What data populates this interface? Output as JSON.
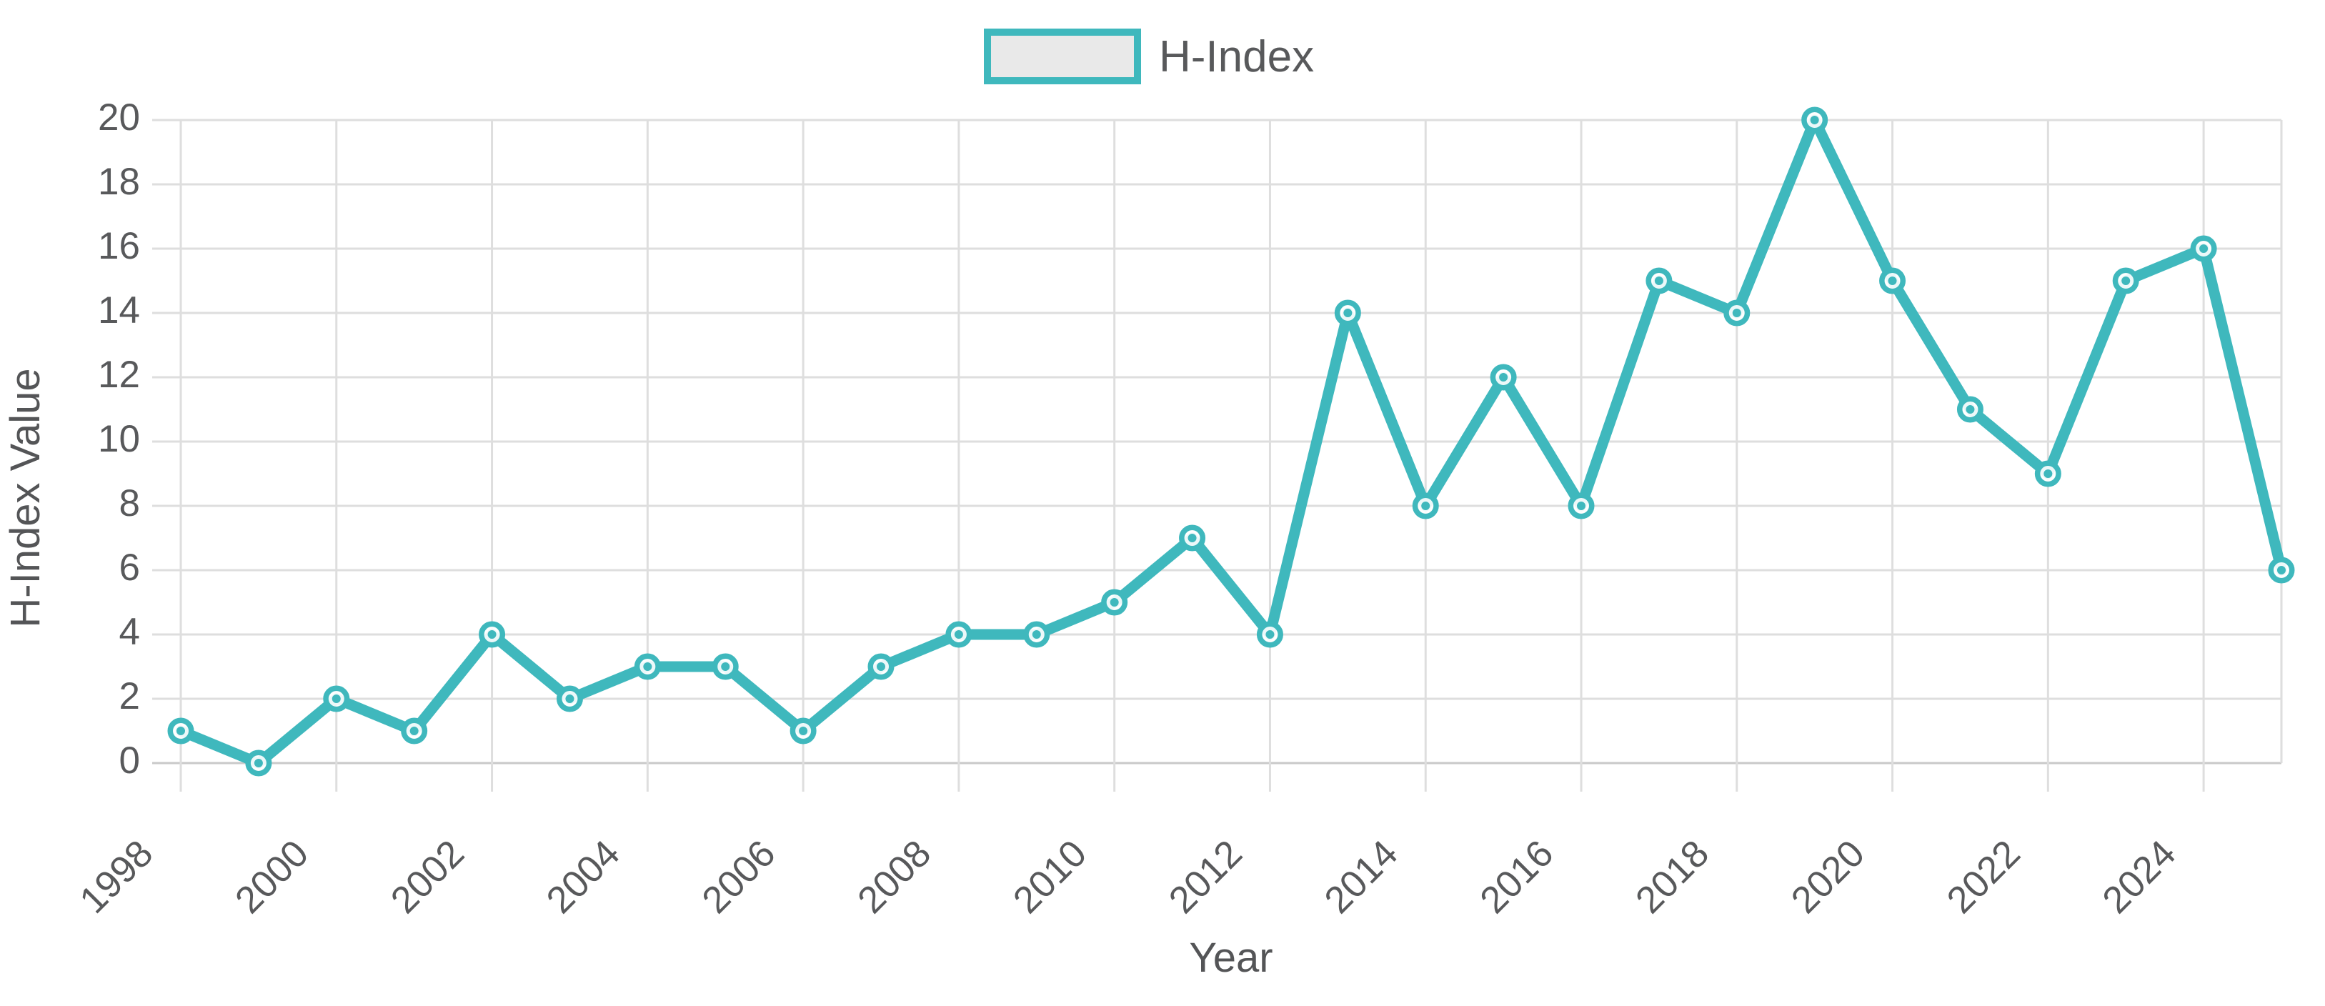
{
  "chart_data": {
    "type": "line",
    "title": "",
    "x": [
      "1998",
      "1999",
      "2000",
      "2001",
      "2002",
      "2003",
      "2004",
      "2005",
      "2006",
      "2007",
      "2008",
      "2009",
      "2010",
      "2011",
      "2012",
      "2013",
      "2014",
      "2015",
      "2016",
      "2017",
      "2018",
      "2019",
      "2020",
      "2021",
      "2022",
      "2023",
      "2024",
      "2025"
    ],
    "series": [
      {
        "name": "H-Index",
        "values": [
          1,
          0,
          2,
          1,
          4,
          2,
          3,
          3,
          1,
          3,
          4,
          4,
          5,
          7,
          4,
          14,
          8,
          12,
          8,
          15,
          14,
          20,
          15,
          11,
          9,
          15,
          16,
          6
        ]
      }
    ],
    "xlabel": "Year",
    "ylabel": "H-Index Value",
    "ylim": [
      0,
      20
    ],
    "ytick_step": 2,
    "xticks_shown": [
      "1998",
      "2000",
      "2002",
      "2004",
      "2006",
      "2008",
      "2010",
      "2012",
      "2014",
      "2016",
      "2018",
      "2020",
      "2022",
      "2024"
    ],
    "grid": true,
    "legend_position": "top",
    "colors": {
      "line": "#3fb8bd",
      "marker_ring": "#3fb8bd",
      "marker_inner": "#ffffff",
      "legend_fill": "#e9e9e9",
      "grid": "#dedede",
      "grid_zero": "#c9c9c9",
      "tick_text": "#58595b",
      "axis_title_text": "#545557"
    }
  }
}
